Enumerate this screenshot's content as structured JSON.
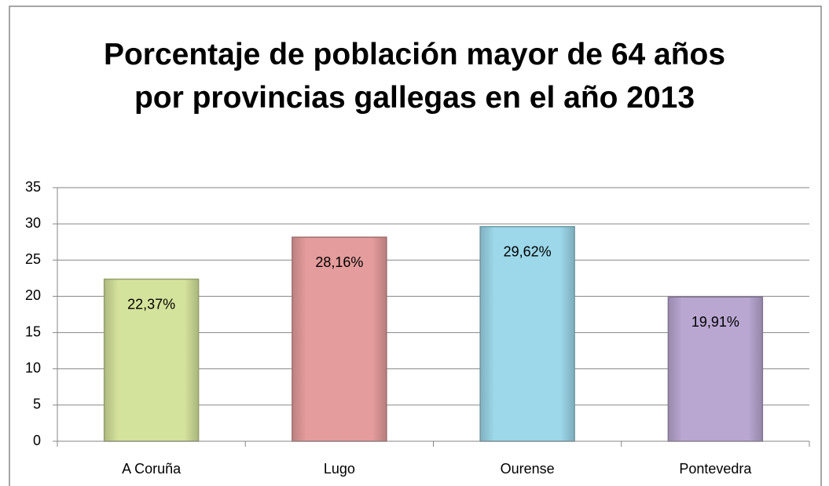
{
  "chart_data": {
    "type": "bar",
    "title": "Porcentaje de población mayor de 64 años por provincias gallegas en el año 2013",
    "categories": [
      "A Coruña",
      "Lugo",
      "Ourense",
      "Pontevedra"
    ],
    "values": [
      22.37,
      28.16,
      29.62,
      19.91
    ],
    "value_labels": [
      "22,37%",
      "28,16%",
      "29,62%",
      "19,91%"
    ],
    "colors": [
      "#d4e39c",
      "#e59c9c",
      "#9cd8ea",
      "#b9a7d2"
    ],
    "ylim": [
      0,
      35
    ],
    "yticks": [
      0,
      5,
      10,
      15,
      20,
      25,
      30,
      35
    ],
    "grid": true
  }
}
